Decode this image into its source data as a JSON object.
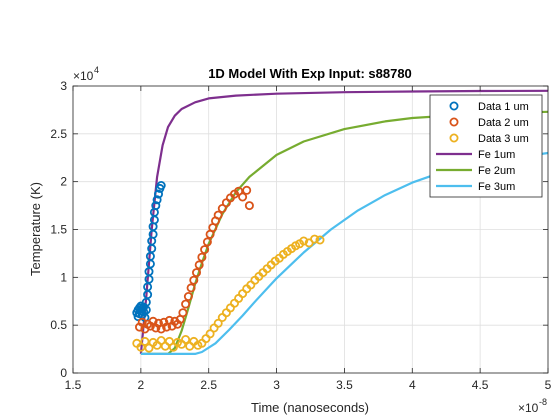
{
  "chart_data": {
    "type": "scatter",
    "title": "1D Model With Exp Input: s88780",
    "xlabel": "Time (nanoseconds)",
    "ylabel": "Temperature (K)",
    "x_exponent_label": "×10",
    "x_exponent": "-8",
    "y_exponent_label": "×10",
    "y_exponent": "4",
    "xlim": [
      1.5e-08,
      5e-08
    ],
    "ylim": [
      0,
      30000
    ],
    "x_ticks": [
      1.5e-08,
      2e-08,
      2.5e-08,
      3e-08,
      3.5e-08,
      4e-08,
      4.5e-08,
      5e-08
    ],
    "x_tick_labels": [
      "1.5",
      "2",
      "2.5",
      "3",
      "3.5",
      "4",
      "4.5",
      "5"
    ],
    "y_ticks": [
      0,
      5000,
      10000,
      15000,
      20000,
      25000,
      30000
    ],
    "y_tick_labels": [
      "0",
      "0.5",
      "1",
      "1.5",
      "2",
      "2.5",
      "3"
    ],
    "grid": true,
    "legend_position": "top-right",
    "series": [
      {
        "name": "Data 1 um",
        "kind": "markers",
        "color": "#0072BD",
        "points": [
          [
            1.97e-08,
            6300
          ],
          [
            1.98e-08,
            6600
          ],
          [
            1.98e-08,
            5900
          ],
          [
            1.99e-08,
            6800
          ],
          [
            1.99e-08,
            6200
          ],
          [
            2e-08,
            6500
          ],
          [
            2e-08,
            7000
          ],
          [
            2.01e-08,
            6100
          ],
          [
            2.01e-08,
            6700
          ],
          [
            2.02e-08,
            6900
          ],
          [
            2.02e-08,
            6400
          ],
          [
            2.03e-08,
            5800
          ],
          [
            2.04e-08,
            6600
          ],
          [
            2.04e-08,
            7400
          ],
          [
            2.05e-08,
            8200
          ],
          [
            2.05e-08,
            9000
          ],
          [
            2.06e-08,
            9800
          ],
          [
            2.06e-08,
            10600
          ],
          [
            2.07e-08,
            11400
          ],
          [
            2.07e-08,
            12200
          ],
          [
            2.08e-08,
            13000
          ],
          [
            2.08e-08,
            13800
          ],
          [
            2.09e-08,
            14500
          ],
          [
            2.09e-08,
            15300
          ],
          [
            2.1e-08,
            16000
          ],
          [
            2.1e-08,
            16800
          ],
          [
            2.11e-08,
            17500
          ],
          [
            2.12e-08,
            18100
          ],
          [
            2.13e-08,
            18700
          ],
          [
            2.14e-08,
            19300
          ],
          [
            2.15e-08,
            19600
          ]
        ]
      },
      {
        "name": "Data 2 um",
        "kind": "markers",
        "color": "#D95319",
        "points": [
          [
            1.99e-08,
            4800
          ],
          [
            2.01e-08,
            5300
          ],
          [
            2.03e-08,
            4600
          ],
          [
            2.05e-08,
            5100
          ],
          [
            2.07e-08,
            4900
          ],
          [
            2.09e-08,
            5400
          ],
          [
            2.11e-08,
            4700
          ],
          [
            2.13e-08,
            5200
          ],
          [
            2.15e-08,
            4600
          ],
          [
            2.17e-08,
            5300
          ],
          [
            2.19e-08,
            4800
          ],
          [
            2.21e-08,
            5500
          ],
          [
            2.23e-08,
            4900
          ],
          [
            2.25e-08,
            5400
          ],
          [
            2.27e-08,
            5100
          ],
          [
            2.29e-08,
            5600
          ],
          [
            2.31e-08,
            6300
          ],
          [
            2.33e-08,
            7200
          ],
          [
            2.35e-08,
            8000
          ],
          [
            2.37e-08,
            8900
          ],
          [
            2.39e-08,
            9700
          ],
          [
            2.41e-08,
            10500
          ],
          [
            2.43e-08,
            11300
          ],
          [
            2.45e-08,
            12100
          ],
          [
            2.47e-08,
            12900
          ],
          [
            2.49e-08,
            13700
          ],
          [
            2.51e-08,
            14500
          ],
          [
            2.53e-08,
            15200
          ],
          [
            2.55e-08,
            15900
          ],
          [
            2.57e-08,
            16500
          ],
          [
            2.6e-08,
            17200
          ],
          [
            2.63e-08,
            17800
          ],
          [
            2.66e-08,
            18300
          ],
          [
            2.69e-08,
            18700
          ],
          [
            2.72e-08,
            19000
          ],
          [
            2.75e-08,
            18400
          ],
          [
            2.78e-08,
            19100
          ],
          [
            2.8e-08,
            17500
          ]
        ]
      },
      {
        "name": "Data 3 um",
        "kind": "markers",
        "color": "#EDB120",
        "points": [
          [
            1.97e-08,
            3100
          ],
          [
            2e-08,
            2700
          ],
          [
            2.03e-08,
            3300
          ],
          [
            2.06e-08,
            2600
          ],
          [
            2.09e-08,
            3200
          ],
          [
            2.12e-08,
            2900
          ],
          [
            2.15e-08,
            3400
          ],
          [
            2.18e-08,
            2800
          ],
          [
            2.21e-08,
            3300
          ],
          [
            2.24e-08,
            2700
          ],
          [
            2.27e-08,
            3200
          ],
          [
            2.3e-08,
            3000
          ],
          [
            2.33e-08,
            3500
          ],
          [
            2.36e-08,
            2800
          ],
          [
            2.39e-08,
            3300
          ],
          [
            2.42e-08,
            2900
          ],
          [
            2.45e-08,
            3100
          ],
          [
            2.48e-08,
            3600
          ],
          [
            2.51e-08,
            4100
          ],
          [
            2.54e-08,
            4700
          ],
          [
            2.57e-08,
            5200
          ],
          [
            2.6e-08,
            5800
          ],
          [
            2.63e-08,
            6300
          ],
          [
            2.66e-08,
            6800
          ],
          [
            2.69e-08,
            7300
          ],
          [
            2.72e-08,
            7800
          ],
          [
            2.75e-08,
            8300
          ],
          [
            2.78e-08,
            8800
          ],
          [
            2.81e-08,
            9200
          ],
          [
            2.84e-08,
            9700
          ],
          [
            2.87e-08,
            10100
          ],
          [
            2.9e-08,
            10500
          ],
          [
            2.93e-08,
            10900
          ],
          [
            2.96e-08,
            11300
          ],
          [
            2.99e-08,
            11700
          ],
          [
            3.02e-08,
            12000
          ],
          [
            3.05e-08,
            12400
          ],
          [
            3.08e-08,
            12700
          ],
          [
            3.11e-08,
            13000
          ],
          [
            3.14e-08,
            13300
          ],
          [
            3.17e-08,
            13500
          ],
          [
            3.2e-08,
            13800
          ],
          [
            3.24e-08,
            13600
          ],
          [
            3.28e-08,
            14000
          ],
          [
            3.32e-08,
            13900
          ]
        ]
      },
      {
        "name": "Fe 1um",
        "kind": "line",
        "color": "#7E2F8E",
        "points": [
          [
            2e-08,
            2000
          ],
          [
            2.04e-08,
            8000
          ],
          [
            2.08e-08,
            15000
          ],
          [
            2.12e-08,
            20500
          ],
          [
            2.16e-08,
            23800
          ],
          [
            2.2e-08,
            25700
          ],
          [
            2.25e-08,
            26900
          ],
          [
            2.3e-08,
            27600
          ],
          [
            2.4e-08,
            28300
          ],
          [
            2.5e-08,
            28700
          ],
          [
            2.7e-08,
            29000
          ],
          [
            3e-08,
            29200
          ],
          [
            3.5e-08,
            29350
          ],
          [
            4e-08,
            29430
          ],
          [
            4.5e-08,
            29480
          ],
          [
            5e-08,
            29500
          ]
        ]
      },
      {
        "name": "Fe 2um",
        "kind": "line",
        "color": "#77AC30",
        "points": [
          [
            2e-08,
            2000
          ],
          [
            2.2e-08,
            2000
          ],
          [
            2.25e-08,
            2600
          ],
          [
            2.3e-08,
            4400
          ],
          [
            2.35e-08,
            6800
          ],
          [
            2.4e-08,
            9300
          ],
          [
            2.45e-08,
            11500
          ],
          [
            2.5e-08,
            13500
          ],
          [
            2.6e-08,
            16600
          ],
          [
            2.7e-08,
            18900
          ],
          [
            2.8e-08,
            20500
          ],
          [
            3e-08,
            22800
          ],
          [
            3.2e-08,
            24200
          ],
          [
            3.5e-08,
            25500
          ],
          [
            3.8e-08,
            26300
          ],
          [
            4e-08,
            26650
          ],
          [
            4.5e-08,
            27100
          ],
          [
            5e-08,
            27300
          ]
        ]
      },
      {
        "name": "Fe 3um",
        "kind": "line",
        "color": "#4DBEEE",
        "points": [
          [
            2e-08,
            2000
          ],
          [
            2.4e-08,
            2000
          ],
          [
            2.45e-08,
            2200
          ],
          [
            2.55e-08,
            3100
          ],
          [
            2.65e-08,
            4500
          ],
          [
            2.75e-08,
            6000
          ],
          [
            2.85e-08,
            7600
          ],
          [
            3e-08,
            9900
          ],
          [
            3.2e-08,
            12600
          ],
          [
            3.4e-08,
            15000
          ],
          [
            3.6e-08,
            17000
          ],
          [
            3.8e-08,
            18600
          ],
          [
            4e-08,
            19900
          ],
          [
            4.2e-08,
            20900
          ],
          [
            4.5e-08,
            21800
          ],
          [
            4.8e-08,
            22600
          ],
          [
            5e-08,
            23000
          ]
        ]
      }
    ]
  }
}
